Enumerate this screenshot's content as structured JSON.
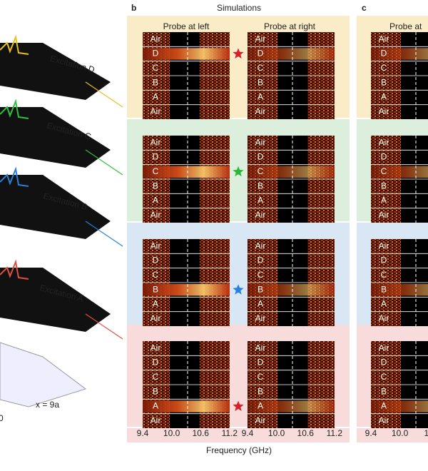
{
  "panel_a": {
    "layers": [
      "Excitation D",
      "Excitation C",
      "Excitation B",
      "Excitation A"
    ],
    "x_label": "x = 9a",
    "origin": "0"
  },
  "panel_b": {
    "label": "b",
    "title": "Simulations",
    "columns": [
      "Probe at left",
      "Probe at right"
    ],
    "x_ticks": [
      "9.4",
      "10.0",
      "10.6",
      "11.2"
    ],
    "x_label": "Frequency (GHz)"
  },
  "panel_c": {
    "label": "c",
    "columns": [
      "Probe at"
    ],
    "x_ticks": [
      "9.4",
      "10.0",
      "10"
    ]
  },
  "layer_labels": [
    "Air",
    "D",
    "C",
    "B",
    "A",
    "Air"
  ]
}
